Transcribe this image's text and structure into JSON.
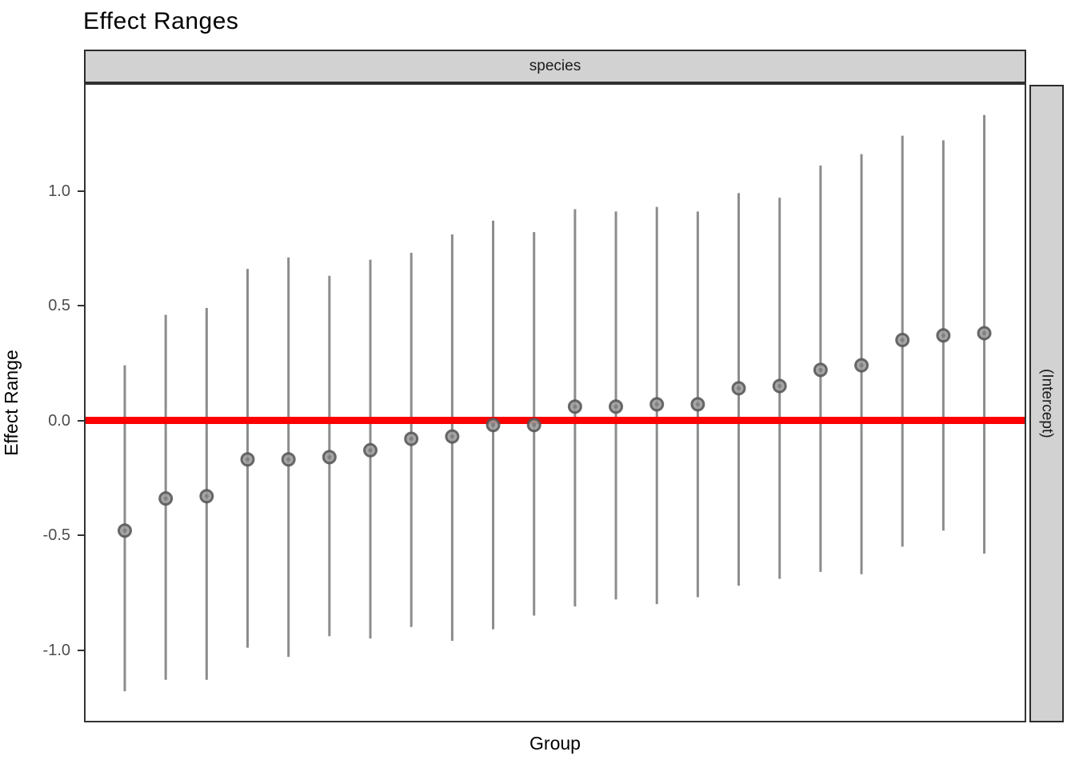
{
  "chart_data": {
    "type": "scatter",
    "subtype": "pointrange-caterpillar",
    "title": "Effect Ranges",
    "facet_strip_top": "species",
    "facet_strip_right": "(Intercept)",
    "xlabel": "Group",
    "ylabel": "Effect Range",
    "legend": "none",
    "grid": "off",
    "ylim": [
      -1.32,
      1.47
    ],
    "x_tick_labels_shown": false,
    "y_ticks": [
      {
        "value": 1.0,
        "label": "1.0"
      },
      {
        "value": 0.5,
        "label": "0.5"
      },
      {
        "value": 0.0,
        "label": "0.0"
      },
      {
        "value": -0.5,
        "label": "-0.5"
      },
      {
        "value": -1.0,
        "label": "-1.0"
      }
    ],
    "reference_line": {
      "y": 0.0,
      "color": "#FF0000"
    },
    "n_groups": 22,
    "points": [
      {
        "group": 1,
        "estimate": -0.48,
        "lower": -1.18,
        "upper": 0.24
      },
      {
        "group": 2,
        "estimate": -0.34,
        "lower": -1.13,
        "upper": 0.46
      },
      {
        "group": 3,
        "estimate": -0.33,
        "lower": -1.13,
        "upper": 0.49
      },
      {
        "group": 4,
        "estimate": -0.17,
        "lower": -0.99,
        "upper": 0.66
      },
      {
        "group": 5,
        "estimate": -0.17,
        "lower": -1.03,
        "upper": 0.71
      },
      {
        "group": 6,
        "estimate": -0.16,
        "lower": -0.94,
        "upper": 0.63
      },
      {
        "group": 7,
        "estimate": -0.13,
        "lower": -0.95,
        "upper": 0.7
      },
      {
        "group": 8,
        "estimate": -0.08,
        "lower": -0.9,
        "upper": 0.73
      },
      {
        "group": 9,
        "estimate": -0.07,
        "lower": -0.96,
        "upper": 0.81
      },
      {
        "group": 10,
        "estimate": -0.02,
        "lower": -0.91,
        "upper": 0.87
      },
      {
        "group": 11,
        "estimate": -0.02,
        "lower": -0.85,
        "upper": 0.82
      },
      {
        "group": 12,
        "estimate": 0.06,
        "lower": -0.81,
        "upper": 0.92
      },
      {
        "group": 13,
        "estimate": 0.06,
        "lower": -0.78,
        "upper": 0.91
      },
      {
        "group": 14,
        "estimate": 0.07,
        "lower": -0.8,
        "upper": 0.93
      },
      {
        "group": 15,
        "estimate": 0.07,
        "lower": -0.77,
        "upper": 0.91
      },
      {
        "group": 16,
        "estimate": 0.14,
        "lower": -0.72,
        "upper": 0.99
      },
      {
        "group": 17,
        "estimate": 0.15,
        "lower": -0.69,
        "upper": 0.97
      },
      {
        "group": 18,
        "estimate": 0.22,
        "lower": -0.66,
        "upper": 1.11
      },
      {
        "group": 19,
        "estimate": 0.24,
        "lower": -0.67,
        "upper": 1.16
      },
      {
        "group": 20,
        "estimate": 0.35,
        "lower": -0.55,
        "upper": 1.24
      },
      {
        "group": 21,
        "estimate": 0.37,
        "lower": -0.48,
        "upper": 1.22
      },
      {
        "group": 22,
        "estimate": 0.38,
        "lower": -0.58,
        "upper": 1.33
      }
    ],
    "colors": {
      "reference_line": "#FF0000",
      "range_bar": "#8C8C8C",
      "point_fill": "#9C9C9C",
      "point_stroke": "#545454",
      "point_core": "#7E7E7E",
      "strip_fill": "#D2D2D2",
      "panel_border": "#333333",
      "tick_label": "#4D4D4D",
      "text": "#000000"
    }
  }
}
